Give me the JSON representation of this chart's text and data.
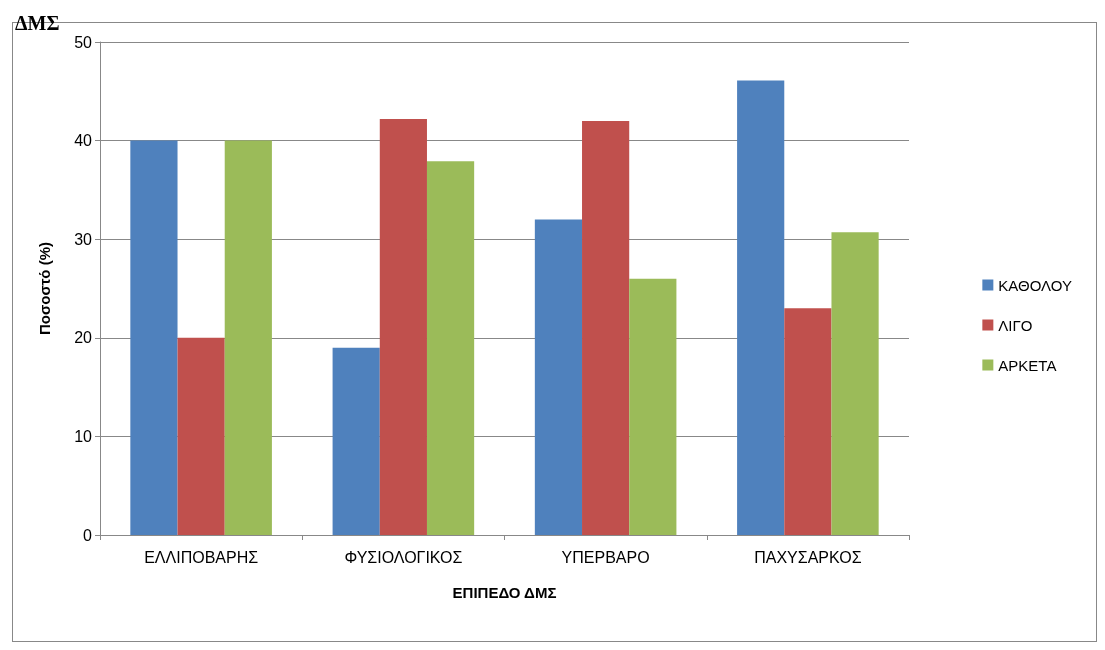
{
  "chart_data": {
    "type": "bar",
    "title": "ΔΜΣ",
    "xlabel": "ΕΠΙΠΕΔΟ ΔΜΣ",
    "ylabel": "Ποσοστό (%)",
    "categories": [
      "ΕΛΛΙΠΟΒΑΡΗΣ",
      "ΦΥΣΙΟΛΟΓΙΚΟΣ",
      "ΥΠΕΡΒΑΡΟ",
      "ΠΑΧΥΣΑΡΚΟΣ"
    ],
    "series": [
      {
        "name": "ΚΑΘΟΛΟΥ",
        "color": "#4f81bd",
        "values": [
          40,
          19,
          32,
          46.1
        ]
      },
      {
        "name": "ΛΙΓΟ",
        "color": "#c0504d",
        "values": [
          20,
          42.2,
          42,
          23
        ]
      },
      {
        "name": "ΑΡΚΕΤΑ",
        "color": "#9bbb59",
        "values": [
          40,
          37.9,
          26,
          30.7
        ]
      }
    ],
    "ylim": [
      0,
      50
    ],
    "yticks": [
      0,
      10,
      20,
      30,
      40,
      50
    ],
    "grid": "y",
    "legend": "right"
  }
}
